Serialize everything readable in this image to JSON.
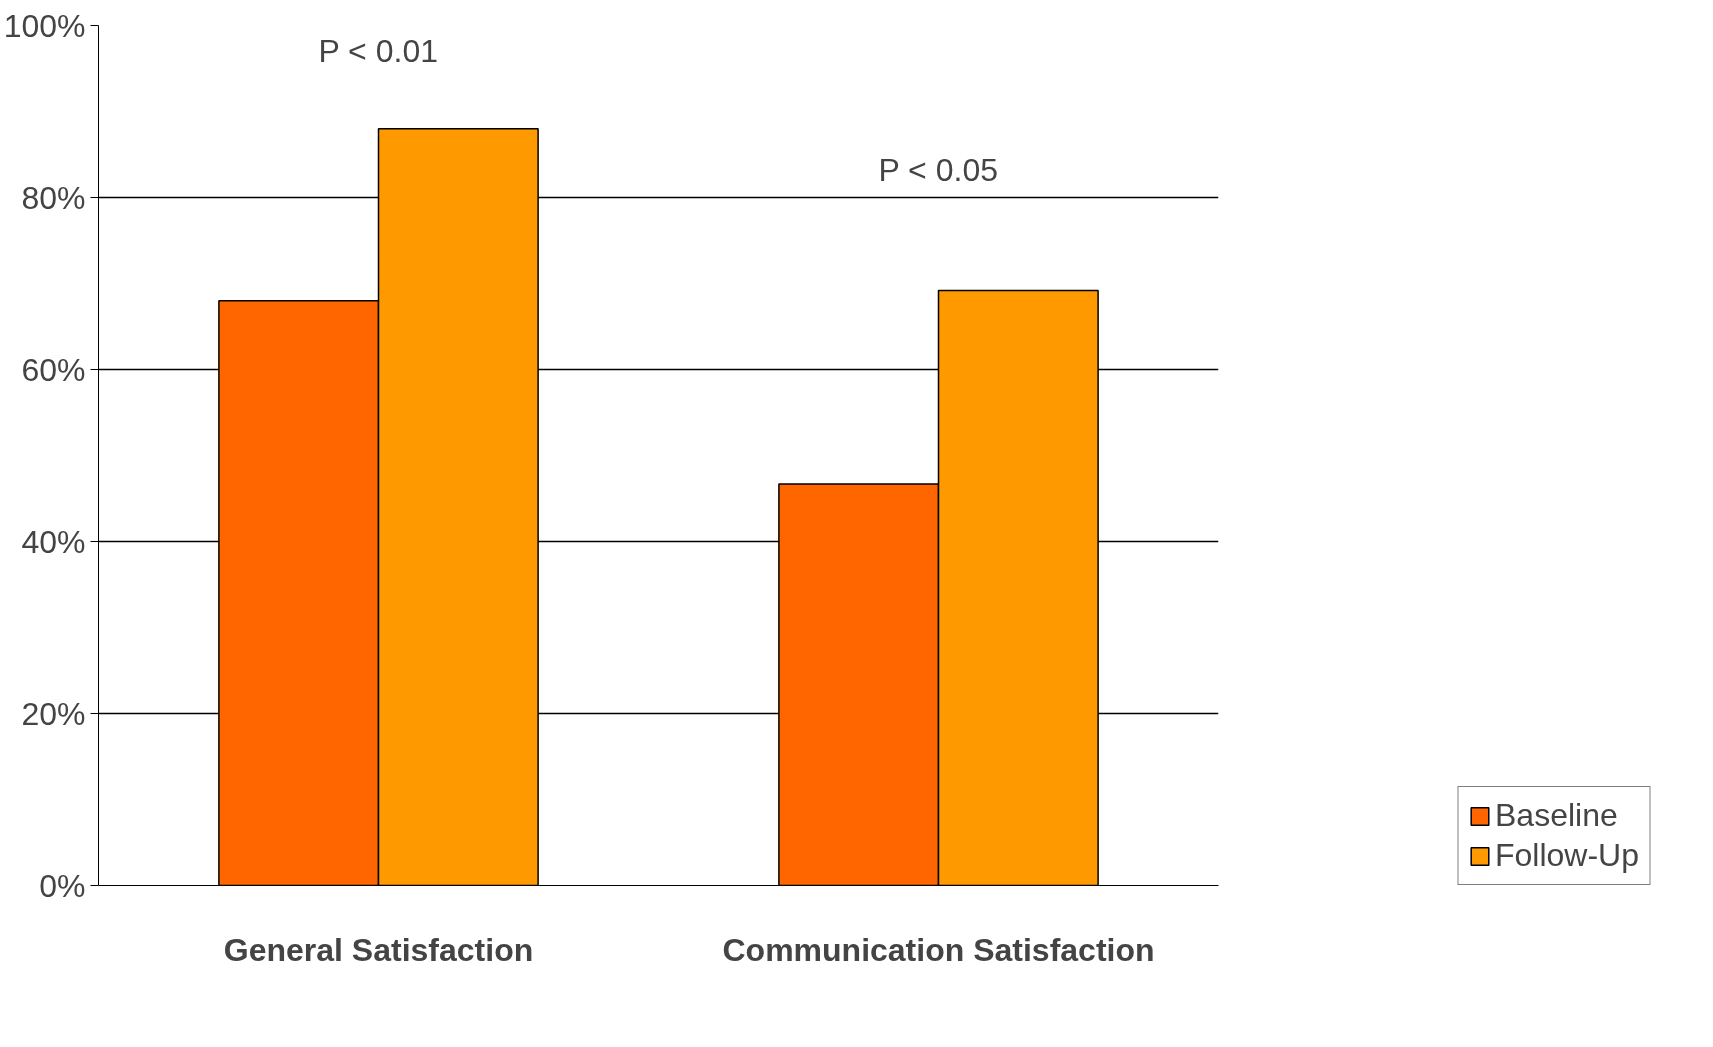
{
  "chart_data": {
    "type": "bar",
    "categories": [
      "General Satisfaction",
      "Communication Satisfaction"
    ],
    "series": [
      {
        "name": "Baseline",
        "color": "#ff6600",
        "values": [
          68,
          46.7
        ]
      },
      {
        "name": "Follow-Up",
        "color": "#ff9900",
        "values": [
          88,
          69.2
        ]
      }
    ],
    "ylim": [
      0,
      100
    ],
    "yticks": [
      {
        "value": 0,
        "label": "0%"
      },
      {
        "value": 20,
        "label": "20%"
      },
      {
        "value": 40,
        "label": "40%"
      },
      {
        "value": 60,
        "label": "60%"
      },
      {
        "value": 80,
        "label": "80%"
      },
      {
        "value": 100,
        "label": "100%"
      }
    ],
    "grid": "y",
    "legend": "bottom right",
    "annotations": [
      "P < 0.01",
      "P < 0.05"
    ]
  }
}
